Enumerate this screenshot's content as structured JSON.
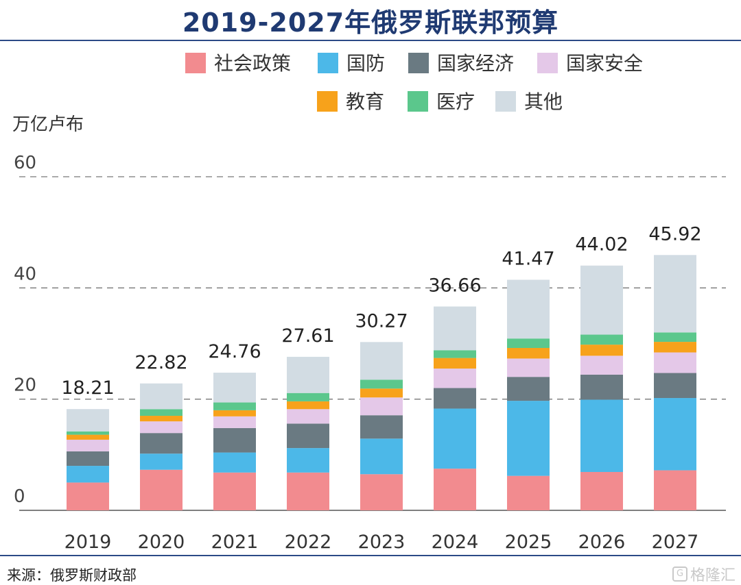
{
  "chart_data": {
    "type": "bar",
    "stacked": true,
    "title": "2019-2027年俄罗斯联邦预算",
    "ylabel": "万亿卢布",
    "ylim": [
      0,
      60
    ],
    "yticks": [
      0,
      20,
      40,
      60
    ],
    "grid": true,
    "legend_position": "top",
    "categories": [
      "2019",
      "2020",
      "2021",
      "2022",
      "2023",
      "2024",
      "2025",
      "2026",
      "2027"
    ],
    "totals": [
      18.21,
      22.82,
      24.76,
      27.61,
      30.27,
      36.66,
      41.47,
      44.02,
      45.92
    ],
    "series": [
      {
        "name": "社会政策",
        "color": "#f28b8f",
        "values": [
          5.0,
          7.3,
          6.8,
          6.8,
          6.5,
          7.5,
          6.2,
          6.9,
          7.2
        ]
      },
      {
        "name": "国防",
        "color": "#4cb8e8",
        "values": [
          3.0,
          2.9,
          3.6,
          4.4,
          6.4,
          10.8,
          13.5,
          13.0,
          13.0
        ]
      },
      {
        "name": "国家经济",
        "color": "#6a7a82",
        "values": [
          2.6,
          3.7,
          4.4,
          4.4,
          4.2,
          3.7,
          4.3,
          4.5,
          4.5
        ]
      },
      {
        "name": "国家安全",
        "color": "#e4c8e8",
        "values": [
          2.1,
          2.1,
          2.1,
          2.6,
          3.2,
          3.5,
          3.3,
          3.4,
          3.7
        ]
      },
      {
        "name": "教育",
        "color": "#f7a21b",
        "values": [
          0.9,
          1.0,
          1.1,
          1.4,
          1.6,
          1.9,
          1.9,
          2.0,
          1.9
        ]
      },
      {
        "name": "医疗",
        "color": "#5bc78c",
        "values": [
          0.6,
          1.2,
          1.4,
          1.5,
          1.6,
          1.4,
          1.7,
          1.8,
          1.7
        ]
      },
      {
        "name": "其他",
        "color": "#d2dce3",
        "values": [
          4.01,
          4.62,
          5.36,
          6.51,
          6.77,
          7.86,
          10.57,
          12.42,
          13.92
        ]
      }
    ]
  },
  "footer": {
    "source": "来源：俄罗斯财政部",
    "watermark": "格隆汇",
    "watermark_logo": "G"
  }
}
